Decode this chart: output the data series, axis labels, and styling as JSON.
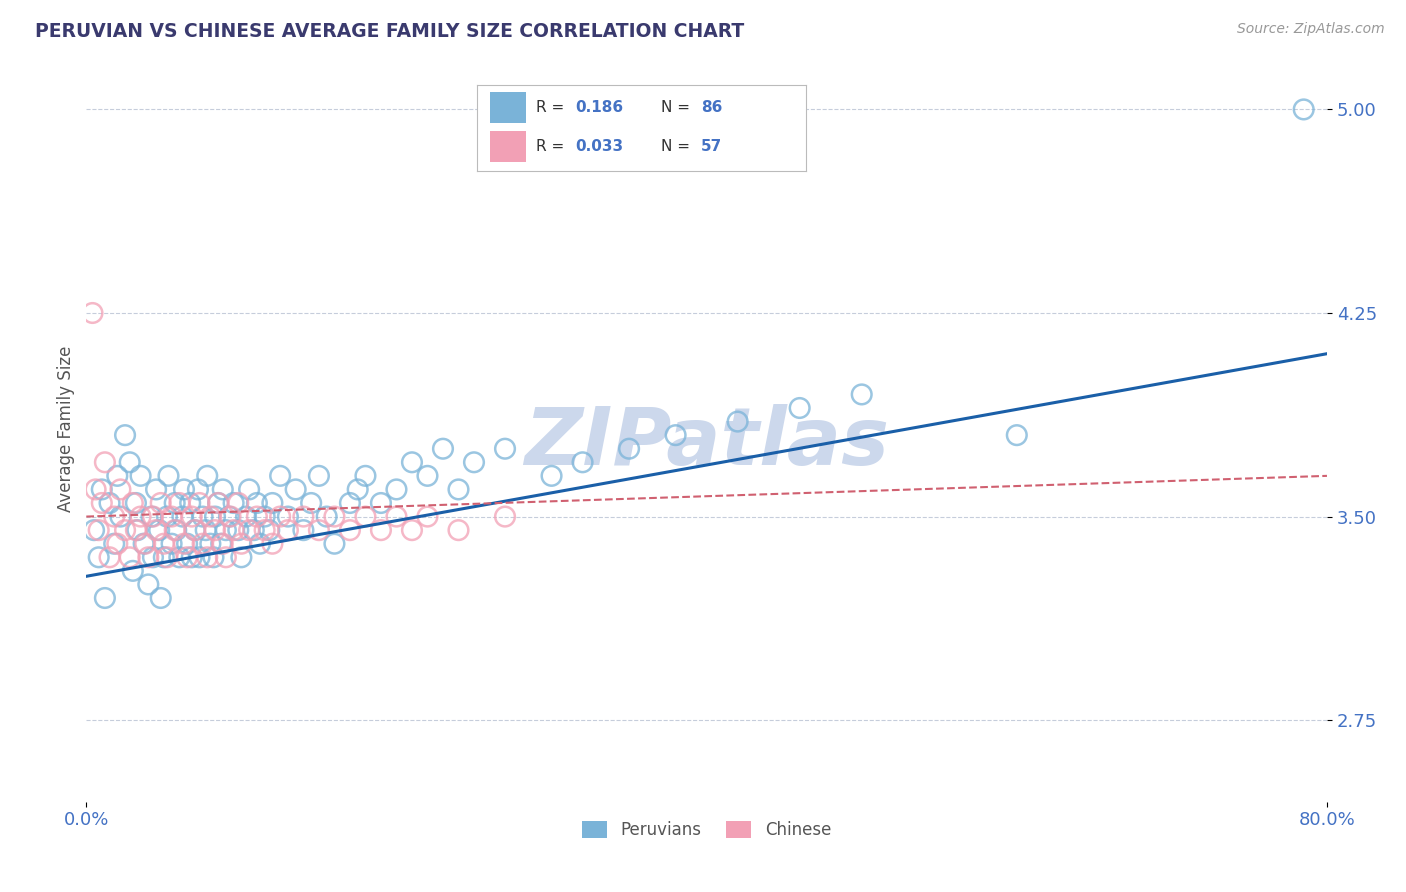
{
  "title": "PERUVIAN VS CHINESE AVERAGE FAMILY SIZE CORRELATION CHART",
  "source": "Source: ZipAtlas.com",
  "ylabel": "Average Family Size",
  "xlim": [
    0,
    0.8
  ],
  "ylim": [
    2.45,
    5.2
  ],
  "yticks": [
    2.75,
    3.5,
    4.25,
    5.0
  ],
  "xticks": [
    0.0,
    0.8
  ],
  "xtick_labels": [
    "0.0%",
    "80.0%"
  ],
  "title_color": "#3a3a6e",
  "axis_color": "#4472c4",
  "watermark": "ZIPatlas",
  "watermark_color": "#ccd8ec",
  "peruvian_color": "#7ab3d8",
  "chinese_color": "#f2a0b5",
  "peruvian_line_color": "#1a5fa8",
  "chinese_line_color": "#d06070",
  "peruvian_scatter_x": [
    0.005,
    0.008,
    0.01,
    0.012,
    0.015,
    0.018,
    0.02,
    0.022,
    0.025,
    0.028,
    0.03,
    0.032,
    0.033,
    0.035,
    0.037,
    0.04,
    0.042,
    0.043,
    0.045,
    0.047,
    0.048,
    0.05,
    0.052,
    0.053,
    0.055,
    0.057,
    0.058,
    0.06,
    0.062,
    0.063,
    0.065,
    0.067,
    0.068,
    0.07,
    0.072,
    0.073,
    0.075,
    0.077,
    0.078,
    0.08,
    0.082,
    0.083,
    0.085,
    0.087,
    0.088,
    0.09,
    0.092,
    0.095,
    0.098,
    0.1,
    0.103,
    0.105,
    0.108,
    0.11,
    0.112,
    0.115,
    0.118,
    0.12,
    0.125,
    0.13,
    0.135,
    0.14,
    0.145,
    0.15,
    0.155,
    0.16,
    0.17,
    0.175,
    0.18,
    0.19,
    0.2,
    0.21,
    0.22,
    0.23,
    0.24,
    0.25,
    0.27,
    0.3,
    0.32,
    0.35,
    0.38,
    0.42,
    0.46,
    0.5,
    0.6,
    0.785
  ],
  "peruvian_scatter_y": [
    3.45,
    3.35,
    3.6,
    3.2,
    3.55,
    3.4,
    3.65,
    3.5,
    3.8,
    3.7,
    3.3,
    3.55,
    3.45,
    3.65,
    3.4,
    3.25,
    3.5,
    3.35,
    3.6,
    3.45,
    3.2,
    3.35,
    3.5,
    3.65,
    3.4,
    3.55,
    3.45,
    3.35,
    3.5,
    3.6,
    3.4,
    3.55,
    3.35,
    3.45,
    3.6,
    3.35,
    3.5,
    3.45,
    3.65,
    3.4,
    3.35,
    3.5,
    3.55,
    3.4,
    3.6,
    3.45,
    3.5,
    3.55,
    3.45,
    3.35,
    3.5,
    3.6,
    3.45,
    3.55,
    3.4,
    3.5,
    3.45,
    3.55,
    3.65,
    3.5,
    3.6,
    3.45,
    3.55,
    3.65,
    3.5,
    3.4,
    3.55,
    3.6,
    3.65,
    3.55,
    3.6,
    3.7,
    3.65,
    3.75,
    3.6,
    3.7,
    3.75,
    3.65,
    3.7,
    3.75,
    3.8,
    3.85,
    3.9,
    3.95,
    3.8,
    5.0
  ],
  "chinese_scatter_x": [
    0.004,
    0.006,
    0.008,
    0.01,
    0.012,
    0.015,
    0.018,
    0.02,
    0.022,
    0.025,
    0.028,
    0.03,
    0.032,
    0.035,
    0.038,
    0.04,
    0.043,
    0.045,
    0.048,
    0.05,
    0.052,
    0.055,
    0.057,
    0.06,
    0.063,
    0.065,
    0.068,
    0.07,
    0.073,
    0.075,
    0.078,
    0.08,
    0.083,
    0.085,
    0.088,
    0.09,
    0.093,
    0.095,
    0.098,
    0.1,
    0.105,
    0.11,
    0.115,
    0.12,
    0.125,
    0.13,
    0.14,
    0.15,
    0.16,
    0.17,
    0.18,
    0.19,
    0.2,
    0.21,
    0.22,
    0.24,
    0.27
  ],
  "chinese_scatter_y": [
    4.25,
    3.6,
    3.45,
    3.55,
    3.7,
    3.35,
    3.5,
    3.4,
    3.6,
    3.45,
    3.35,
    3.55,
    3.45,
    3.5,
    3.4,
    3.35,
    3.5,
    3.45,
    3.55,
    3.4,
    3.35,
    3.5,
    3.45,
    3.55,
    3.4,
    3.35,
    3.5,
    3.45,
    3.55,
    3.4,
    3.35,
    3.5,
    3.45,
    3.55,
    3.4,
    3.35,
    3.5,
    3.45,
    3.55,
    3.4,
    3.45,
    3.5,
    3.45,
    3.4,
    3.5,
    3.45,
    3.5,
    3.45,
    3.5,
    3.45,
    3.5,
    3.45,
    3.5,
    3.45,
    3.5,
    3.45,
    3.5
  ],
  "peruvian_line_x0": 0.0,
  "peruvian_line_y0": 3.28,
  "peruvian_line_x1": 0.8,
  "peruvian_line_y1": 4.1,
  "chinese_line_x0": 0.0,
  "chinese_line_y0": 3.5,
  "chinese_line_x1": 0.8,
  "chinese_line_y1": 3.65
}
